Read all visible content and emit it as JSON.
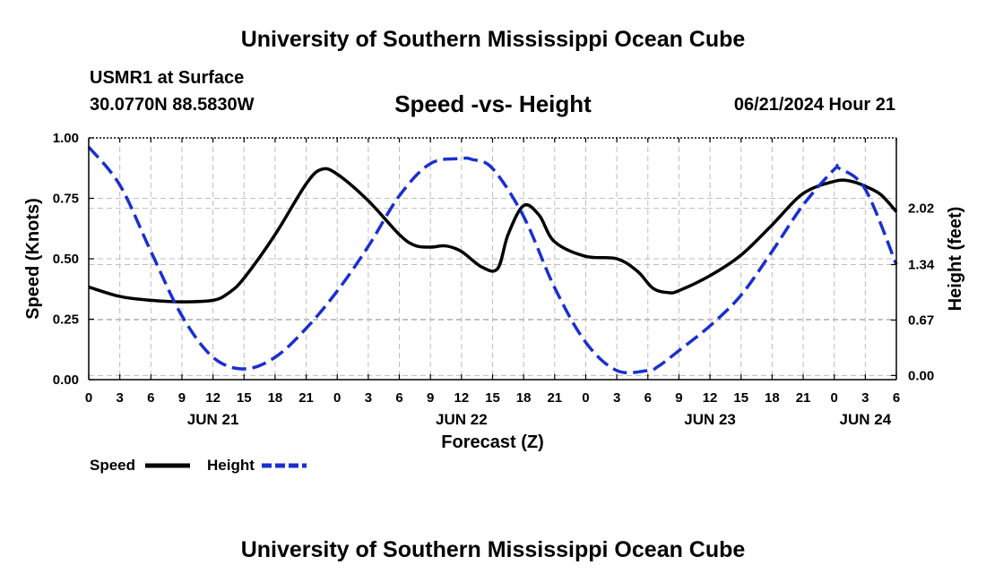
{
  "header": {
    "title": "University of Southern Mississippi Ocean Cube",
    "station": "USMR1 at Surface",
    "coordinates": "30.0770N  88.5830W",
    "subtitle": "Speed -vs- Height",
    "datetime": "06/21/2024 Hour 21"
  },
  "footer": {
    "title": "University of Southern Mississippi Ocean Cube"
  },
  "legend": {
    "speed_label": "Speed",
    "height_label": "Height"
  },
  "chart_data": {
    "type": "line",
    "xlabel": "Forecast (Z)",
    "ylabel": "Speed (Knots)",
    "y2label": "Height (feet)",
    "x_unit": "hours",
    "xlim": [
      0,
      78
    ],
    "ylim": [
      0,
      1.0
    ],
    "y2lim": [
      -0.05,
      2.87
    ],
    "x_ticks": [
      0,
      3,
      6,
      9,
      12,
      15,
      18,
      21,
      24,
      27,
      30,
      33,
      36,
      39,
      42,
      45,
      48,
      51,
      54,
      57,
      60,
      63,
      66,
      69,
      72,
      75,
      78
    ],
    "x_tick_labels": [
      "0",
      "3",
      "6",
      "9",
      "12",
      "15",
      "18",
      "21",
      "0",
      "3",
      "6",
      "9",
      "12",
      "15",
      "18",
      "21",
      "0",
      "3",
      "6",
      "9",
      "12",
      "15",
      "18",
      "21",
      "0",
      "3",
      "6"
    ],
    "date_labels": [
      {
        "x": 12,
        "label": "JUN 21"
      },
      {
        "x": 36,
        "label": "JUN 22"
      },
      {
        "x": 60,
        "label": "JUN 23"
      },
      {
        "x": 75,
        "label": "JUN 24"
      }
    ],
    "y_ticks": [
      0.0,
      0.25,
      0.5,
      0.75,
      1.0
    ],
    "y_tick_labels": [
      "0.00",
      "0.25",
      "0.50",
      "0.75",
      "1.00"
    ],
    "y2_ticks": [
      0.0,
      0.67,
      1.34,
      2.02
    ],
    "y2_tick_labels": [
      "0.00",
      "0.67",
      "1.34",
      "2.02"
    ],
    "grid": true,
    "series": [
      {
        "name": "Speed",
        "axis": "left",
        "color": "#000000",
        "style": "solid",
        "x": [
          0,
          3,
          6,
          9,
          12,
          13.5,
          15,
          18,
          21,
          22.5,
          24,
          27,
          30,
          31.5,
          33,
          34.5,
          36,
          38,
          39.5,
          40.5,
          42,
          43.5,
          45,
          48,
          51,
          53,
          54.5,
          56,
          57,
          60,
          63,
          66,
          69,
          72,
          73.5,
          75,
          76.5,
          78
        ],
        "values": [
          0.383,
          0.344,
          0.328,
          0.322,
          0.328,
          0.358,
          0.42,
          0.6,
          0.81,
          0.87,
          0.85,
          0.74,
          0.6,
          0.555,
          0.548,
          0.553,
          0.53,
          0.465,
          0.46,
          0.6,
          0.72,
          0.68,
          0.57,
          0.51,
          0.5,
          0.448,
          0.378,
          0.36,
          0.368,
          0.43,
          0.515,
          0.64,
          0.77,
          0.82,
          0.822,
          0.8,
          0.765,
          0.695
        ]
      },
      {
        "name": "Height",
        "axis": "right",
        "color": "#1a2fcf",
        "style": "dashed",
        "x": [
          0,
          3,
          6,
          9,
          12,
          15,
          18,
          21,
          24,
          27,
          30,
          33,
          36,
          37,
          39,
          42,
          45,
          48,
          51,
          54,
          55,
          57,
          60,
          63,
          66,
          69,
          72,
          72.5,
          75,
          78
        ],
        "values": [
          2.76,
          2.3,
          1.5,
          0.72,
          0.22,
          0.08,
          0.22,
          0.57,
          1.02,
          1.56,
          2.17,
          2.56,
          2.62,
          2.61,
          2.5,
          1.92,
          1.06,
          0.4,
          0.06,
          0.06,
          0.11,
          0.3,
          0.6,
          0.97,
          1.5,
          2.06,
          2.49,
          2.5,
          2.25,
          1.34
        ]
      }
    ]
  }
}
